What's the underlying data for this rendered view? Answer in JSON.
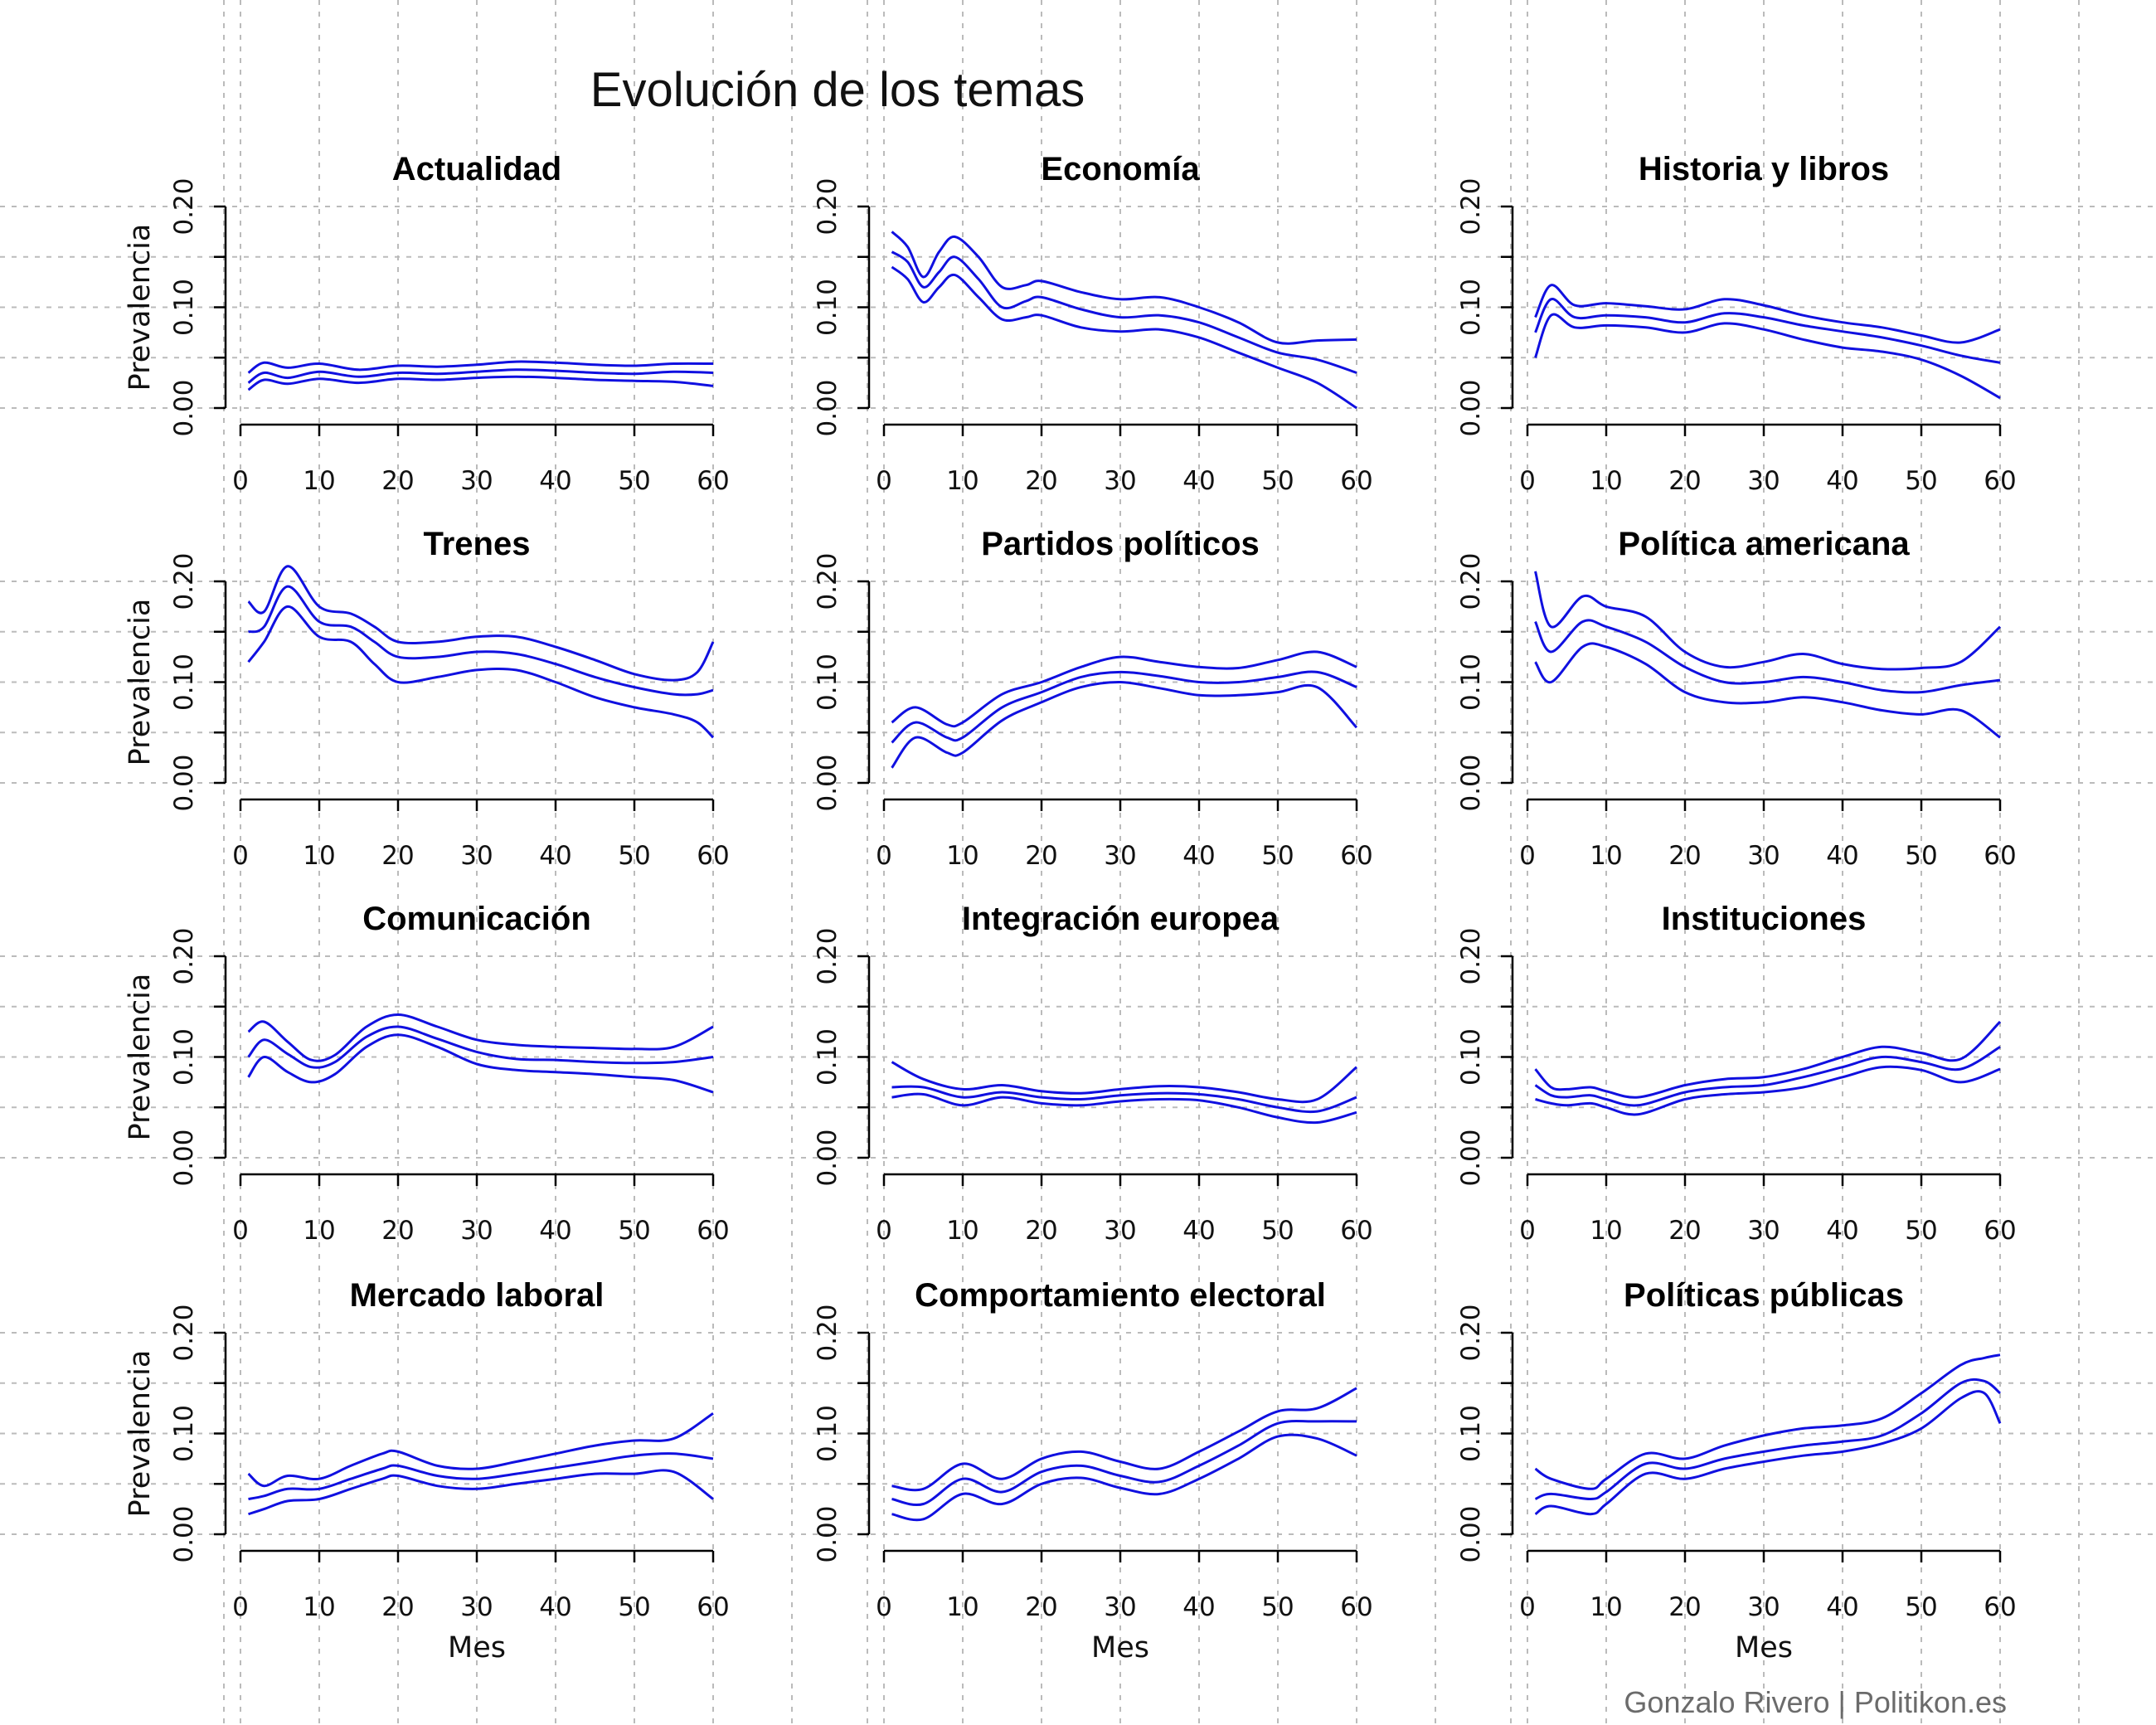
{
  "title": "Evolución de los temas",
  "credit": "Gonzalo Rivero | Politikon.es",
  "style": {
    "line_color": "#1010e0",
    "grid_color": "#bbbbbb"
  },
  "chart_data": [
    {
      "type": "line",
      "title": "Actualidad",
      "xlabel": "",
      "ylabel": "Prevalencia",
      "xlim": [
        0,
        60
      ],
      "ylim": [
        0,
        0.2
      ],
      "x_ticks": [
        "0",
        "10",
        "20",
        "30",
        "40",
        "50",
        "60"
      ],
      "y_ticks": [
        "0.00",
        "0.10",
        "0.20"
      ],
      "x": [
        1,
        3,
        6,
        10,
        15,
        20,
        25,
        30,
        35,
        40,
        45,
        50,
        55,
        60
      ],
      "series": [
        {
          "values": [
            0.025,
            0.035,
            0.03,
            0.036,
            0.031,
            0.035,
            0.034,
            0.036,
            0.038,
            0.037,
            0.035,
            0.034,
            0.036,
            0.035
          ]
        },
        {
          "values": [
            0.035,
            0.045,
            0.04,
            0.044,
            0.038,
            0.042,
            0.041,
            0.043,
            0.046,
            0.045,
            0.043,
            0.042,
            0.044,
            0.044
          ]
        },
        {
          "values": [
            0.018,
            0.028,
            0.024,
            0.029,
            0.025,
            0.029,
            0.028,
            0.03,
            0.031,
            0.03,
            0.028,
            0.027,
            0.026,
            0.022
          ]
        }
      ]
    },
    {
      "type": "line",
      "title": "Economía",
      "xlabel": "",
      "ylabel": "",
      "xlim": [
        0,
        60
      ],
      "ylim": [
        0,
        0.2
      ],
      "x_ticks": [
        "0",
        "10",
        "20",
        "30",
        "40",
        "50",
        "60"
      ],
      "y_ticks": [
        "0.00",
        "0.10",
        "0.20"
      ],
      "x": [
        1,
        3,
        5,
        7,
        9,
        12,
        15,
        18,
        20,
        25,
        30,
        35,
        40,
        45,
        50,
        55,
        60
      ],
      "series": [
        {
          "values": [
            0.155,
            0.145,
            0.12,
            0.135,
            0.15,
            0.128,
            0.1,
            0.106,
            0.11,
            0.098,
            0.09,
            0.092,
            0.085,
            0.07,
            0.055,
            0.048,
            0.035
          ]
        },
        {
          "values": [
            0.175,
            0.16,
            0.13,
            0.155,
            0.17,
            0.15,
            0.12,
            0.122,
            0.126,
            0.115,
            0.108,
            0.11,
            0.1,
            0.085,
            0.065,
            0.067,
            0.068
          ]
        },
        {
          "values": [
            0.14,
            0.128,
            0.105,
            0.12,
            0.132,
            0.11,
            0.088,
            0.09,
            0.092,
            0.08,
            0.076,
            0.078,
            0.07,
            0.055,
            0.04,
            0.025,
            0.0
          ]
        }
      ]
    },
    {
      "type": "line",
      "title": "Historia y libros",
      "xlabel": "",
      "ylabel": "",
      "xlim": [
        0,
        60
      ],
      "ylim": [
        0,
        0.2
      ],
      "x_ticks": [
        "0",
        "10",
        "20",
        "30",
        "40",
        "50",
        "60"
      ],
      "y_ticks": [
        "0.00",
        "0.10",
        "0.20"
      ],
      "x": [
        1,
        3,
        6,
        10,
        15,
        20,
        25,
        30,
        35,
        40,
        45,
        50,
        55,
        60
      ],
      "series": [
        {
          "values": [
            0.075,
            0.108,
            0.09,
            0.092,
            0.09,
            0.085,
            0.094,
            0.09,
            0.082,
            0.076,
            0.07,
            0.062,
            0.052,
            0.045
          ]
        },
        {
          "values": [
            0.09,
            0.122,
            0.102,
            0.104,
            0.101,
            0.098,
            0.108,
            0.102,
            0.092,
            0.085,
            0.08,
            0.072,
            0.065,
            0.078
          ]
        },
        {
          "values": [
            0.05,
            0.092,
            0.08,
            0.082,
            0.08,
            0.075,
            0.084,
            0.078,
            0.068,
            0.06,
            0.056,
            0.048,
            0.032,
            0.01
          ]
        }
      ]
    },
    {
      "type": "line",
      "title": "Trenes",
      "xlabel": "",
      "ylabel": "Prevalencia",
      "xlim": [
        0,
        60
      ],
      "ylim": [
        0,
        0.2
      ],
      "x_ticks": [
        "0",
        "10",
        "20",
        "30",
        "40",
        "50",
        "60"
      ],
      "y_ticks": [
        "0.00",
        "0.10",
        "0.20"
      ],
      "x": [
        1,
        3,
        6,
        10,
        14,
        17,
        20,
        25,
        30,
        35,
        40,
        45,
        50,
        55,
        58,
        60
      ],
      "series": [
        {
          "values": [
            0.15,
            0.155,
            0.195,
            0.16,
            0.155,
            0.14,
            0.125,
            0.125,
            0.13,
            0.128,
            0.118,
            0.105,
            0.095,
            0.088,
            0.088,
            0.092
          ]
        },
        {
          "values": [
            0.18,
            0.17,
            0.215,
            0.175,
            0.168,
            0.155,
            0.14,
            0.14,
            0.145,
            0.145,
            0.135,
            0.122,
            0.108,
            0.102,
            0.11,
            0.14
          ]
        },
        {
          "values": [
            0.12,
            0.14,
            0.175,
            0.145,
            0.14,
            0.118,
            0.1,
            0.105,
            0.112,
            0.112,
            0.1,
            0.085,
            0.075,
            0.068,
            0.06,
            0.045
          ]
        }
      ]
    },
    {
      "type": "line",
      "title": "Partidos políticos",
      "xlabel": "",
      "ylabel": "",
      "xlim": [
        0,
        60
      ],
      "ylim": [
        0,
        0.2
      ],
      "x_ticks": [
        "0",
        "10",
        "20",
        "30",
        "40",
        "50",
        "60"
      ],
      "y_ticks": [
        "0.00",
        "0.10",
        "0.20"
      ],
      "x": [
        1,
        4,
        8,
        10,
        15,
        20,
        25,
        30,
        35,
        40,
        45,
        50,
        55,
        60
      ],
      "series": [
        {
          "values": [
            0.04,
            0.06,
            0.045,
            0.045,
            0.075,
            0.09,
            0.105,
            0.11,
            0.106,
            0.1,
            0.1,
            0.105,
            0.11,
            0.095
          ]
        },
        {
          "values": [
            0.06,
            0.075,
            0.058,
            0.06,
            0.088,
            0.1,
            0.115,
            0.125,
            0.12,
            0.115,
            0.114,
            0.122,
            0.13,
            0.115
          ]
        },
        {
          "values": [
            0.015,
            0.045,
            0.03,
            0.03,
            0.062,
            0.08,
            0.095,
            0.1,
            0.094,
            0.087,
            0.087,
            0.09,
            0.095,
            0.055
          ]
        }
      ]
    },
    {
      "type": "line",
      "title": "Política americana",
      "xlabel": "",
      "ylabel": "",
      "xlim": [
        0,
        60
      ],
      "ylim": [
        0,
        0.2
      ],
      "x_ticks": [
        "0",
        "10",
        "20",
        "30",
        "40",
        "50",
        "60"
      ],
      "y_ticks": [
        "0.00",
        "0.10",
        "0.20"
      ],
      "x": [
        1,
        3,
        7,
        10,
        15,
        20,
        25,
        30,
        35,
        40,
        45,
        50,
        55,
        60
      ],
      "series": [
        {
          "values": [
            0.16,
            0.13,
            0.16,
            0.155,
            0.14,
            0.115,
            0.1,
            0.1,
            0.105,
            0.1,
            0.092,
            0.09,
            0.097,
            0.102
          ]
        },
        {
          "values": [
            0.21,
            0.155,
            0.185,
            0.175,
            0.165,
            0.13,
            0.115,
            0.12,
            0.128,
            0.118,
            0.113,
            0.114,
            0.12,
            0.155
          ]
        },
        {
          "values": [
            0.12,
            0.1,
            0.135,
            0.135,
            0.118,
            0.09,
            0.08,
            0.08,
            0.085,
            0.08,
            0.072,
            0.068,
            0.072,
            0.045
          ]
        }
      ]
    },
    {
      "type": "line",
      "title": "Comunicación",
      "xlabel": "",
      "ylabel": "Prevalencia",
      "xlim": [
        0,
        60
      ],
      "ylim": [
        0,
        0.2
      ],
      "x_ticks": [
        "0",
        "10",
        "20",
        "30",
        "40",
        "50",
        "60"
      ],
      "y_ticks": [
        "0.00",
        "0.10",
        "0.20"
      ],
      "x": [
        1,
        3,
        6,
        9,
        12,
        16,
        20,
        25,
        30,
        35,
        40,
        45,
        50,
        55,
        60
      ],
      "series": [
        {
          "values": [
            0.1,
            0.117,
            0.103,
            0.09,
            0.095,
            0.12,
            0.13,
            0.118,
            0.105,
            0.098,
            0.097,
            0.095,
            0.094,
            0.095,
            0.1
          ]
        },
        {
          "values": [
            0.125,
            0.135,
            0.115,
            0.097,
            0.102,
            0.13,
            0.142,
            0.13,
            0.117,
            0.112,
            0.11,
            0.109,
            0.108,
            0.11,
            0.13
          ]
        },
        {
          "values": [
            0.08,
            0.1,
            0.085,
            0.075,
            0.083,
            0.11,
            0.122,
            0.11,
            0.093,
            0.087,
            0.085,
            0.083,
            0.08,
            0.077,
            0.065
          ]
        }
      ]
    },
    {
      "type": "line",
      "title": "Integración europea",
      "xlabel": "",
      "ylabel": "",
      "xlim": [
        0,
        60
      ],
      "ylim": [
        0,
        0.2
      ],
      "x_ticks": [
        "0",
        "10",
        "20",
        "30",
        "40",
        "50",
        "60"
      ],
      "y_ticks": [
        "0.00",
        "0.10",
        "0.20"
      ],
      "x": [
        1,
        5,
        10,
        15,
        20,
        25,
        30,
        35,
        40,
        45,
        50,
        55,
        60
      ],
      "series": [
        {
          "values": [
            0.07,
            0.07,
            0.06,
            0.065,
            0.06,
            0.058,
            0.062,
            0.064,
            0.063,
            0.058,
            0.05,
            0.046,
            0.06
          ]
        },
        {
          "values": [
            0.095,
            0.078,
            0.068,
            0.072,
            0.066,
            0.064,
            0.068,
            0.071,
            0.07,
            0.065,
            0.058,
            0.058,
            0.09
          ]
        },
        {
          "values": [
            0.06,
            0.063,
            0.052,
            0.06,
            0.054,
            0.052,
            0.056,
            0.058,
            0.057,
            0.05,
            0.04,
            0.035,
            0.045
          ]
        }
      ]
    },
    {
      "type": "line",
      "title": "Instituciones",
      "xlabel": "",
      "ylabel": "",
      "xlim": [
        0,
        60
      ],
      "ylim": [
        0,
        0.2
      ],
      "x_ticks": [
        "0",
        "10",
        "20",
        "30",
        "40",
        "50",
        "60"
      ],
      "y_ticks": [
        "0.00",
        "0.10",
        "0.20"
      ],
      "x": [
        1,
        3,
        5,
        8,
        10,
        14,
        20,
        25,
        30,
        35,
        40,
        45,
        50,
        55,
        60
      ],
      "series": [
        {
          "values": [
            0.072,
            0.062,
            0.06,
            0.062,
            0.058,
            0.052,
            0.065,
            0.07,
            0.072,
            0.08,
            0.09,
            0.1,
            0.095,
            0.088,
            0.11
          ]
        },
        {
          "values": [
            0.088,
            0.07,
            0.068,
            0.07,
            0.066,
            0.06,
            0.072,
            0.078,
            0.08,
            0.088,
            0.1,
            0.11,
            0.104,
            0.098,
            0.135
          ]
        },
        {
          "values": [
            0.058,
            0.054,
            0.052,
            0.054,
            0.05,
            0.043,
            0.058,
            0.063,
            0.065,
            0.07,
            0.08,
            0.09,
            0.087,
            0.075,
            0.088
          ]
        }
      ]
    },
    {
      "type": "line",
      "title": "Mercado laboral",
      "xlabel": "Mes",
      "ylabel": "Prevalencia",
      "xlim": [
        0,
        60
      ],
      "ylim": [
        0,
        0.2
      ],
      "x_ticks": [
        "0",
        "10",
        "20",
        "30",
        "40",
        "50",
        "60"
      ],
      "y_ticks": [
        "0.00",
        "0.10",
        "0.20"
      ],
      "x": [
        1,
        3,
        6,
        10,
        14,
        18,
        20,
        25,
        30,
        35,
        40,
        45,
        50,
        55,
        60
      ],
      "series": [
        {
          "values": [
            0.035,
            0.038,
            0.045,
            0.045,
            0.055,
            0.065,
            0.068,
            0.058,
            0.055,
            0.06,
            0.066,
            0.072,
            0.078,
            0.08,
            0.075
          ]
        },
        {
          "values": [
            0.06,
            0.048,
            0.058,
            0.055,
            0.068,
            0.08,
            0.082,
            0.068,
            0.065,
            0.072,
            0.08,
            0.088,
            0.093,
            0.095,
            0.12
          ]
        },
        {
          "values": [
            0.02,
            0.025,
            0.033,
            0.035,
            0.045,
            0.055,
            0.058,
            0.048,
            0.045,
            0.05,
            0.055,
            0.06,
            0.06,
            0.062,
            0.035
          ]
        }
      ]
    },
    {
      "type": "line",
      "title": "Comportamiento electoral",
      "xlabel": "Mes",
      "ylabel": "",
      "xlim": [
        0,
        60
      ],
      "ylim": [
        0,
        0.2
      ],
      "x_ticks": [
        "0",
        "10",
        "20",
        "30",
        "40",
        "50",
        "60"
      ],
      "y_ticks": [
        "0.00",
        "0.10",
        "0.20"
      ],
      "x": [
        1,
        5,
        10,
        15,
        20,
        25,
        30,
        35,
        40,
        45,
        50,
        55,
        60
      ],
      "series": [
        {
          "values": [
            0.035,
            0.03,
            0.055,
            0.042,
            0.062,
            0.068,
            0.058,
            0.052,
            0.068,
            0.088,
            0.11,
            0.112,
            0.112
          ]
        },
        {
          "values": [
            0.048,
            0.045,
            0.07,
            0.055,
            0.075,
            0.082,
            0.072,
            0.065,
            0.082,
            0.102,
            0.122,
            0.125,
            0.145
          ]
        },
        {
          "values": [
            0.02,
            0.015,
            0.04,
            0.03,
            0.05,
            0.056,
            0.046,
            0.04,
            0.055,
            0.075,
            0.097,
            0.095,
            0.078
          ]
        }
      ]
    },
    {
      "type": "line",
      "title": "Políticas públicas",
      "xlabel": "Mes",
      "ylabel": "",
      "xlim": [
        0,
        60
      ],
      "ylim": [
        0,
        0.2
      ],
      "x_ticks": [
        "0",
        "10",
        "20",
        "30",
        "40",
        "50",
        "60"
      ],
      "y_ticks": [
        "0.00",
        "0.10",
        "0.20"
      ],
      "x": [
        1,
        3,
        8,
        10,
        15,
        20,
        25,
        30,
        35,
        40,
        45,
        50,
        55,
        58,
        60
      ],
      "series": [
        {
          "values": [
            0.035,
            0.04,
            0.035,
            0.042,
            0.07,
            0.065,
            0.075,
            0.082,
            0.088,
            0.092,
            0.098,
            0.12,
            0.15,
            0.152,
            0.14
          ]
        },
        {
          "values": [
            0.065,
            0.055,
            0.045,
            0.055,
            0.08,
            0.075,
            0.088,
            0.098,
            0.105,
            0.108,
            0.115,
            0.14,
            0.168,
            0.175,
            0.178
          ]
        },
        {
          "values": [
            0.02,
            0.028,
            0.02,
            0.03,
            0.06,
            0.055,
            0.065,
            0.072,
            0.078,
            0.082,
            0.09,
            0.105,
            0.135,
            0.14,
            0.11
          ]
        }
      ]
    }
  ]
}
